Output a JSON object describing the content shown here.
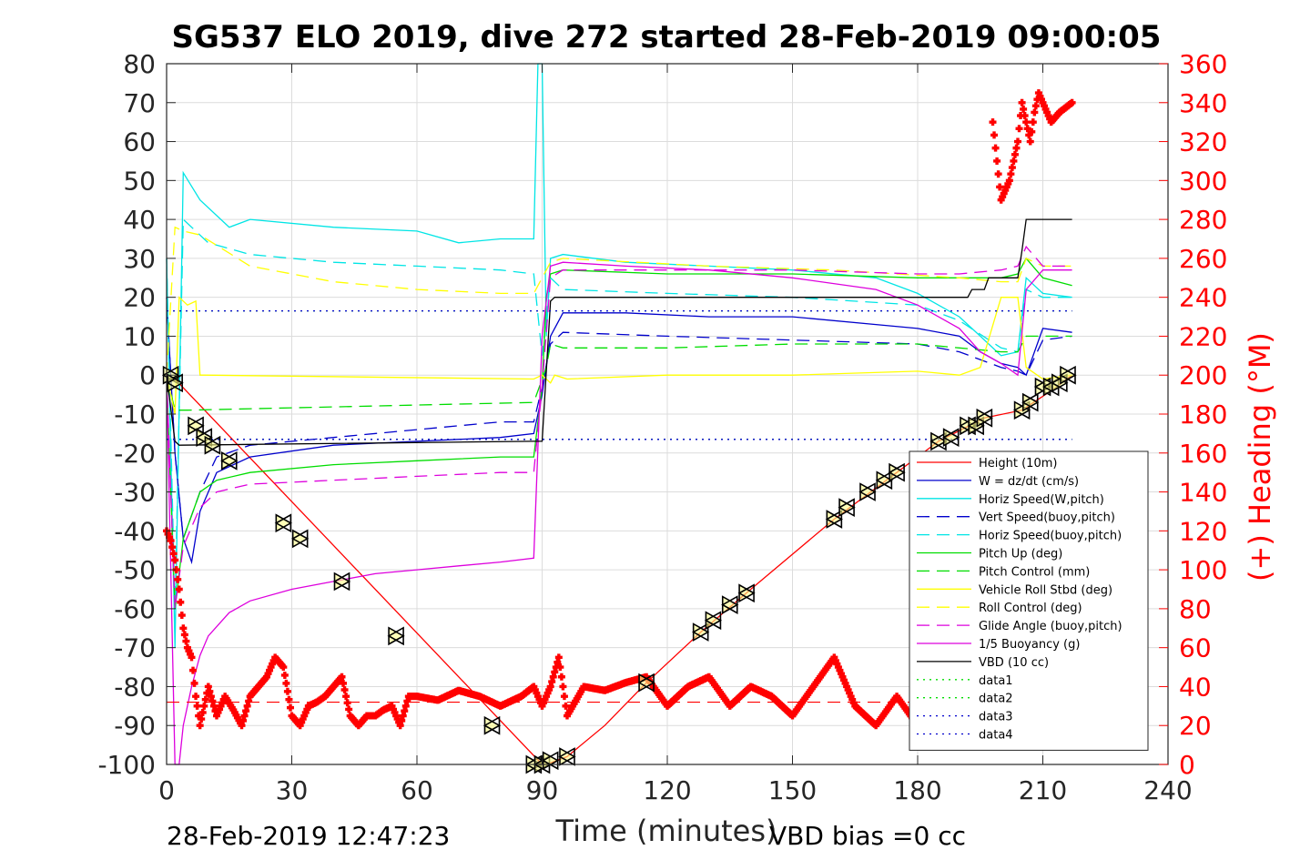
{
  "chart_data": {
    "type": "line",
    "title": "SG537 ELO 2019, dive 272 started 28-Feb-2019 09:00:05",
    "xlabel": "Time (minutes)",
    "ylabel": "",
    "y2label": "(+) Heading (°M)",
    "xlim": [
      0,
      240
    ],
    "ylim": [
      -100,
      80
    ],
    "y2lim": [
      0,
      360
    ],
    "x_ticks": [
      "0",
      "30",
      "60",
      "90",
      "120",
      "150",
      "180",
      "210",
      "240"
    ],
    "y_ticks": [
      "80",
      "70",
      "60",
      "50",
      "40",
      "30",
      "20",
      "10",
      "0",
      "-10",
      "-20",
      "-30",
      "-40",
      "-50",
      "-60",
      "-70",
      "-80",
      "-90",
      "-100"
    ],
    "y2_ticks": [
      "360",
      "340",
      "320",
      "300",
      "280",
      "260",
      "240",
      "220",
      "200",
      "180",
      "160",
      "140",
      "120",
      "100",
      "80",
      "60",
      "40",
      "20",
      "0"
    ],
    "grid": true,
    "legend_position": "bottom-right",
    "footer_left": "28-Feb-2019 12:47:23",
    "footer_right": "VBD bias =0 cc",
    "series": [
      {
        "name": "Height (10m)",
        "color": "#ff0000",
        "style": "solid",
        "x": [
          0,
          2,
          90,
          91,
          96,
          105,
          115,
          128,
          140,
          160,
          175,
          185,
          196,
          205,
          212,
          217
        ],
        "y": [
          0,
          -1,
          -100,
          -100,
          -98,
          -90,
          -79,
          -66,
          -55,
          -37,
          -25,
          -17,
          -11,
          -9,
          -4,
          0
        ]
      },
      {
        "name": "W = dz/dt (cm/s)",
        "color": "#0000cc",
        "style": "solid",
        "x": [
          0,
          2,
          4,
          6,
          8,
          12,
          20,
          40,
          60,
          80,
          88,
          90,
          92,
          95,
          110,
          130,
          150,
          170,
          180,
          190,
          195,
          200,
          204,
          206,
          210,
          217
        ],
        "y": [
          20,
          -20,
          -42,
          -48,
          -35,
          -25,
          -21,
          -18,
          -17,
          -16,
          -15,
          -5,
          10,
          16,
          16,
          15,
          15,
          13,
          12,
          10,
          6,
          3,
          2,
          0,
          12,
          11
        ]
      },
      {
        "name": "Horiz Speed(W,pitch)",
        "color": "#00e5e5",
        "style": "solid",
        "x": [
          0,
          2,
          4,
          8,
          15,
          20,
          40,
          60,
          70,
          80,
          88,
          89,
          90,
          91,
          92,
          95,
          110,
          130,
          150,
          170,
          180,
          190,
          195,
          200,
          204,
          206,
          210,
          217
        ],
        "y": [
          30,
          -70,
          52,
          45,
          38,
          40,
          38,
          37,
          34,
          35,
          35,
          80,
          80,
          10,
          30,
          31,
          29,
          28,
          27,
          25,
          21,
          15,
          10,
          5,
          6,
          25,
          21,
          20
        ]
      },
      {
        "name": "Vert Speed(buoy,pitch)",
        "color": "#0000cc",
        "style": "dashed",
        "x": [
          0,
          2,
          4,
          8,
          12,
          20,
          40,
          60,
          80,
          88,
          90,
          92,
          95,
          120,
          150,
          180,
          190,
          200,
          204,
          206,
          210,
          217
        ],
        "y": [
          20,
          -20,
          -42,
          -30,
          -21,
          -18,
          -16,
          -14,
          -12,
          -12,
          -3,
          8,
          11,
          10,
          9,
          8,
          6,
          2,
          1,
          0,
          9,
          10
        ]
      },
      {
        "name": "Horiz Speed(buoy,pitch)",
        "color": "#00e5e5",
        "style": "dashed",
        "x": [
          0,
          2,
          4,
          10,
          20,
          30,
          40,
          60,
          80,
          88,
          90,
          92,
          95,
          120,
          150,
          180,
          190,
          200,
          204,
          206,
          210,
          217
        ],
        "y": [
          30,
          -60,
          40,
          34,
          31,
          30,
          29,
          28,
          27,
          26,
          5,
          25,
          22,
          21,
          20,
          18,
          14,
          7,
          6,
          22,
          20,
          20
        ]
      },
      {
        "name": "Pitch Up (deg)",
        "color": "#00dd00",
        "style": "solid",
        "x": [
          0,
          2,
          4,
          8,
          12,
          20,
          40,
          60,
          80,
          88,
          90,
          91,
          92,
          95,
          120,
          150,
          180,
          190,
          200,
          204,
          206,
          210,
          217
        ],
        "y": [
          0,
          -60,
          -42,
          -30,
          -27,
          -25,
          -23,
          -22,
          -21,
          -21,
          -3,
          20,
          26,
          27,
          26,
          26,
          25,
          25,
          25,
          26,
          30,
          25,
          23
        ]
      },
      {
        "name": "Pitch Control (mm)",
        "color": "#00dd00",
        "style": "dashed",
        "x": [
          0,
          2,
          5,
          88,
          91,
          92,
          95,
          120,
          150,
          180,
          190,
          200,
          204,
          206,
          217
        ],
        "y": [
          0,
          -9,
          -9,
          -7,
          2,
          8,
          7,
          7,
          8,
          8,
          7,
          6,
          6,
          10,
          10
        ]
      },
      {
        "name": "Vehicle Roll Stbd (deg)",
        "color": "#ffff00",
        "style": "solid",
        "x": [
          0,
          2,
          3,
          5,
          7,
          8,
          9,
          88,
          90,
          92,
          93,
          96,
          120,
          150,
          180,
          190,
          195,
          200,
          204,
          206,
          210,
          217
        ],
        "y": [
          0,
          -10,
          20,
          18,
          19,
          0,
          0,
          -1,
          0,
          -2,
          0,
          -1,
          0,
          0,
          1,
          0,
          2,
          20,
          20,
          2,
          -1,
          0
        ]
      },
      {
        "name": "Roll Control (deg)",
        "color": "#ffff00",
        "style": "dashed",
        "x": [
          0,
          2,
          4,
          8,
          20,
          40,
          60,
          80,
          88,
          92,
          95,
          130,
          160,
          190,
          200,
          204,
          206,
          210,
          217
        ],
        "y": [
          0,
          38,
          37,
          36,
          28,
          24,
          22,
          21,
          21,
          29,
          30,
          28,
          27,
          25,
          24,
          24,
          30,
          28,
          28
        ]
      },
      {
        "name": "Glide Angle (buoy,pitch)",
        "color": "#dd00dd",
        "style": "dashed",
        "x": [
          0,
          2,
          4,
          8,
          12,
          20,
          40,
          60,
          80,
          88,
          90,
          92,
          95,
          120,
          150,
          180,
          190,
          200,
          204,
          206,
          210,
          217
        ],
        "y": [
          0,
          -60,
          -44,
          -34,
          -30,
          -28,
          -27,
          -26,
          -25,
          -25,
          -3,
          25,
          27,
          27,
          27,
          26,
          26,
          27,
          28,
          33,
          28,
          28
        ]
      },
      {
        "name": "1/5 Buoyancy (g)",
        "color": "#dd00dd",
        "style": "solid",
        "x": [
          0,
          2,
          3,
          4,
          6,
          8,
          10,
          15,
          20,
          30,
          40,
          50,
          60,
          70,
          80,
          88,
          90,
          92,
          95,
          110,
          130,
          150,
          170,
          180,
          190,
          195,
          200,
          204,
          206,
          210,
          217
        ],
        "y": [
          0,
          -100,
          -100,
          -90,
          -80,
          -72,
          -67,
          -61,
          -58,
          -55,
          -53,
          -51,
          -50,
          -49,
          -48,
          -47,
          10,
          28,
          29,
          28,
          27,
          25,
          22,
          18,
          12,
          6,
          3,
          0,
          22,
          27,
          27
        ]
      },
      {
        "name": "VBD (10 cc)",
        "color": "#000000",
        "style": "solid",
        "x": [
          0,
          2,
          3,
          88,
          90,
          92,
          93,
          100,
          130,
          160,
          185,
          192,
          193,
          196,
          197,
          204,
          205,
          206,
          217
        ],
        "y": [
          0,
          -17,
          -18,
          -17,
          -17,
          19,
          20,
          20,
          20,
          20,
          20,
          20,
          22,
          22,
          25,
          25,
          32,
          40,
          40
        ]
      },
      {
        "name": "data1",
        "color": "#00dd00",
        "style": "dotted",
        "x": [
          0,
          217
        ],
        "y": [
          16.5,
          16.5
        ]
      },
      {
        "name": "data2",
        "color": "#00dd00",
        "style": "dotted",
        "x": [
          0,
          217
        ],
        "y": [
          -16.5,
          -16.5
        ]
      },
      {
        "name": "data3",
        "color": "#0000cc",
        "style": "dotted",
        "x": [
          0,
          217
        ],
        "y": [
          16.5,
          16.5
        ]
      },
      {
        "name": "data4",
        "color": "#0000cc",
        "style": "dotted",
        "x": [
          0,
          217
        ],
        "y": [
          -16.5,
          -16.5
        ]
      }
    ],
    "heading": {
      "color": "#ff0000",
      "x": [
        0,
        1,
        2,
        3,
        4,
        5,
        6,
        7,
        8,
        9,
        10,
        12,
        14,
        16,
        18,
        20,
        22,
        24,
        26,
        28,
        30,
        32,
        34,
        36,
        38,
        40,
        42,
        44,
        46,
        48,
        50,
        52,
        54,
        56,
        58,
        60,
        65,
        70,
        75,
        80,
        85,
        88,
        90,
        92,
        94,
        96,
        100,
        105,
        110,
        115,
        120,
        125,
        130,
        135,
        140,
        145,
        150,
        155,
        160,
        165,
        170,
        175,
        180,
        185,
        188,
        190,
        192,
        194,
        196,
        198,
        200,
        202,
        204,
        205,
        206,
        207,
        208,
        209,
        210,
        212,
        214,
        217
      ],
      "y": [
        120,
        115,
        105,
        90,
        70,
        60,
        55,
        35,
        20,
        30,
        40,
        25,
        35,
        28,
        20,
        35,
        40,
        45,
        55,
        50,
        25,
        20,
        30,
        32,
        35,
        40,
        45,
        25,
        20,
        25,
        25,
        28,
        30,
        20,
        35,
        35,
        33,
        38,
        35,
        30,
        35,
        40,
        30,
        40,
        55,
        25,
        40,
        38,
        42,
        45,
        30,
        40,
        45,
        30,
        40,
        35,
        25,
        40,
        55,
        30,
        20,
        35,
        20,
        20,
        40,
        45,
        50,
        40,
        30,
        330,
        290,
        300,
        320,
        340,
        330,
        320,
        335,
        345,
        340,
        330,
        335,
        340
      ]
    },
    "heading_ref": {
      "color": "#ff0000",
      "style": "dashed",
      "value": 32
    },
    "markers": {
      "x": [
        1,
        2,
        7,
        9,
        11,
        15,
        28,
        32,
        42,
        55,
        78,
        88,
        90,
        92,
        96,
        115,
        128,
        131,
        135,
        139,
        160,
        163,
        168,
        172,
        175,
        185,
        188,
        192,
        194,
        196,
        205,
        207,
        210,
        212,
        214,
        216
      ],
      "y": [
        0,
        -2,
        -13,
        -16,
        -18,
        -22,
        -38,
        -42,
        -53,
        -67,
        -90,
        -100,
        -100,
        -99,
        -98,
        -79,
        -66,
        -63,
        -59,
        -56,
        -37,
        -34,
        -30,
        -27,
        -25,
        -17,
        -16,
        -13,
        -13,
        -11,
        -9,
        -7,
        -3,
        -3,
        -2,
        0
      ]
    }
  }
}
